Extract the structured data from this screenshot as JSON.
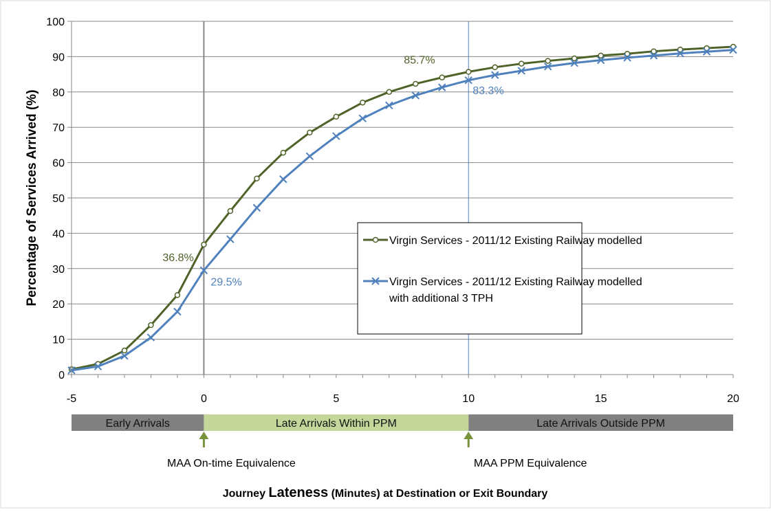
{
  "chart_data": {
    "type": "line",
    "title": "",
    "xlabel_part1": "Journey ",
    "xlabel_emph": "Lateness",
    "xlabel_part2": " (Minutes) at Destination  or Exit Boundary",
    "ylabel": "Percentage of Services Arrived (%)",
    "xlim": [
      -5,
      20
    ],
    "ylim": [
      0,
      100
    ],
    "xticks": [
      -5,
      0,
      5,
      10,
      15,
      20
    ],
    "yticks": [
      0,
      10,
      20,
      30,
      40,
      50,
      60,
      70,
      80,
      90,
      100
    ],
    "grid": "horizontal",
    "vlines": [
      0,
      10
    ],
    "legend_position": "center-right",
    "x": [
      -5,
      -4,
      -3,
      -2,
      -1,
      0,
      1,
      2,
      3,
      4,
      5,
      6,
      7,
      8,
      9,
      10,
      11,
      12,
      13,
      14,
      15,
      16,
      17,
      18,
      19,
      20
    ],
    "series": [
      {
        "name": "Virgin Services - 2011/12 Existing Railway modelled",
        "color": "#4f6228",
        "marker": "circle",
        "values": [
          1.5,
          3.0,
          6.8,
          14.0,
          22.5,
          36.8,
          46.3,
          55.5,
          62.8,
          68.5,
          73.0,
          77.0,
          80.0,
          82.3,
          84.1,
          85.7,
          87.0,
          88.0,
          88.8,
          89.5,
          90.3,
          90.8,
          91.5,
          92.0,
          92.4,
          92.8
        ]
      },
      {
        "name_line1": "Virgin Services - 2011/12 Existing Railway modelled",
        "name_line2": "with additional 3 TPH",
        "color": "#4f81bd",
        "marker": "x",
        "values": [
          1.2,
          2.3,
          5.3,
          10.5,
          17.8,
          29.5,
          38.3,
          47.2,
          55.3,
          61.8,
          67.5,
          72.5,
          76.2,
          79.0,
          81.3,
          83.3,
          84.8,
          86.0,
          87.2,
          88.2,
          89.0,
          89.7,
          90.3,
          90.9,
          91.4,
          91.9
        ]
      }
    ],
    "annotations": [
      {
        "text": "36.8%",
        "x": 0,
        "y": 36.8,
        "series": 0
      },
      {
        "text": "29.5%",
        "x": 0,
        "y": 29.5,
        "series": 1
      },
      {
        "text": "85.7%",
        "x": 10,
        "y": 85.7,
        "series": 0
      },
      {
        "text": "83.3%",
        "x": 10,
        "y": 83.3,
        "series": 1
      }
    ],
    "bands": [
      {
        "label": "Early Arrivals",
        "from": -5,
        "to": 0,
        "color": "#808080"
      },
      {
        "label": "Late Arrivals Within PPM",
        "from": 0,
        "to": 10,
        "color": "#c4d79b"
      },
      {
        "label": "Late Arrivals Outside PPM",
        "from": 10,
        "to": 20,
        "color": "#808080"
      }
    ],
    "markers": [
      {
        "label": "MAA On-time Equivalence",
        "x": 0,
        "color": "#77933c"
      },
      {
        "label": "MAA PPM Equivalence",
        "x": 10,
        "color": "#77933c"
      }
    ]
  }
}
